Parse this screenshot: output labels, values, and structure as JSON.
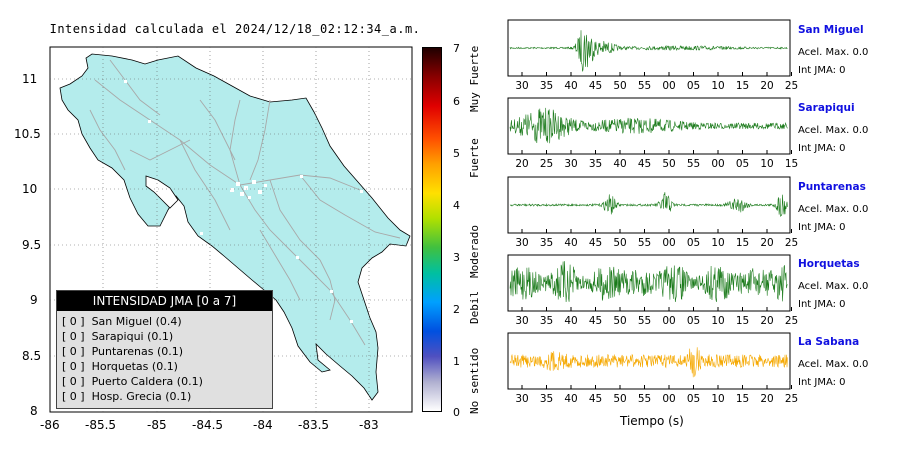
{
  "map": {
    "title": "Intensidad calculada el 2024/12/18_02:12:34_a.m.",
    "x_ticks": [
      "-86",
      "-85.5",
      "-85",
      "-84.5",
      "-84",
      "-83.5",
      "-83"
    ],
    "y_ticks": [
      "11",
      "10.5",
      "10",
      "9.5",
      "9",
      "8.5",
      "8"
    ],
    "land_color": "#b4ecec",
    "road_color": "#a8a8a8",
    "legend": {
      "header": "INTENSIDAD JMA [0 a 7]",
      "items": [
        "[ 0 ]  San Miguel (0.4)",
        "[ 0 ]  Sarapiqui (0.1)",
        "[ 0 ]  Puntarenas (0.1)",
        "[ 0 ]  Horquetas (0.1)",
        "[ 0 ]  Puerto Caldera (0.1)",
        "[ 0 ]  Hosp. Grecia (0.1)"
      ]
    }
  },
  "colorbar": {
    "ticks": [
      "7",
      "6",
      "5",
      "4",
      "3",
      "2",
      "1",
      "0"
    ],
    "labels": [
      "Muy Fuerte",
      "Fuerte",
      "Moderado",
      "Debil",
      "No sentido"
    ]
  },
  "stations": [
    {
      "name": "San Miguel",
      "acel": "Acel. Max. 0.0",
      "int": "Int JMA: 0",
      "color": "#1a7a1a",
      "x_ticks": [
        "30",
        "35",
        "40",
        "45",
        "50",
        "55",
        "00",
        "05",
        "10",
        "15",
        "20",
        "25"
      ]
    },
    {
      "name": "Sarapiqui",
      "acel": "Acel. Max. 0.0",
      "int": "Int JMA: 0",
      "color": "#1a7a1a",
      "x_ticks": [
        "20",
        "25",
        "30",
        "35",
        "40",
        "45",
        "50",
        "55",
        "00",
        "05",
        "10",
        "15"
      ]
    },
    {
      "name": "Puntarenas",
      "acel": "Acel. Max. 0.0",
      "int": "Int JMA: 0",
      "color": "#1a7a1a",
      "x_ticks": [
        "30",
        "35",
        "40",
        "45",
        "50",
        "55",
        "00",
        "05",
        "10",
        "15",
        "20",
        "25"
      ]
    },
    {
      "name": "Horquetas",
      "acel": "Acel. Max. 0.0",
      "int": "Int JMA: 0",
      "color": "#1a7a1a",
      "x_ticks": [
        "30",
        "35",
        "40",
        "45",
        "50",
        "55",
        "00",
        "05",
        "10",
        "15",
        "20",
        "25"
      ]
    },
    {
      "name": "La Sabana",
      "acel": "Acel. Max. 0.0",
      "int": "Int JMA: 0",
      "color": "#f5a800",
      "x_ticks": [
        "30",
        "35",
        "40",
        "45",
        "50",
        "55",
        "00",
        "05",
        "10",
        "15",
        "20",
        "25"
      ]
    }
  ],
  "xlabel": "Tiempo (s)",
  "chart_data": [
    {
      "type": "map",
      "title": "Intensidad calculada el 2024/12/18_02:12:34_a.m.",
      "xlim": [
        -86,
        -82.6
      ],
      "ylim": [
        8,
        11.3
      ],
      "x_ticks": [
        -86,
        -85.5,
        -85,
        -84.5,
        -84,
        -83.5,
        -83
      ],
      "y_ticks": [
        8,
        8.5,
        9,
        9.5,
        10,
        10.5,
        11
      ],
      "grid": true
    },
    {
      "type": "colorbar",
      "range": [
        0,
        7
      ],
      "ticks": [
        0,
        1,
        2,
        3,
        4,
        5,
        6,
        7
      ],
      "labels": [
        "No sentido",
        "Debil",
        "Moderado",
        "Fuerte",
        "Muy Fuerte"
      ]
    },
    {
      "type": "line",
      "xlabel": "Tiempo (s)",
      "series": [
        {
          "name": "San Miguel",
          "acel_max": 0.0,
          "int_jma": 0
        },
        {
          "name": "Sarapiqui",
          "acel_max": 0.0,
          "int_jma": 0
        },
        {
          "name": "Puntarenas",
          "acel_max": 0.0,
          "int_jma": 0
        },
        {
          "name": "Horquetas",
          "acel_max": 0.0,
          "int_jma": 0
        },
        {
          "name": "La Sabana",
          "acel_max": 0.0,
          "int_jma": 0
        }
      ]
    }
  ]
}
